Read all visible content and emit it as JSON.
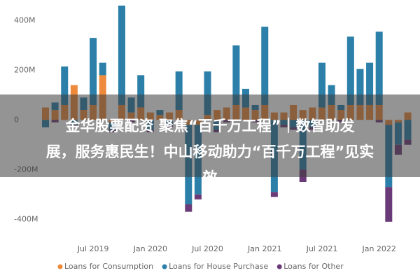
{
  "chart_data": {
    "type": "stacked_bar",
    "categories": [
      null,
      null,
      null,
      null,
      null,
      "Jul 2019",
      null,
      null,
      null,
      null,
      null,
      "Jan 2020",
      null,
      null,
      null,
      null,
      null,
      "Jul 2020",
      null,
      null,
      null,
      null,
      null,
      "Jan 2021",
      null,
      null,
      null,
      null,
      null,
      "Jul 2021",
      null,
      null,
      null,
      null,
      null,
      "Jan 2022",
      null,
      null,
      null
    ],
    "series": [
      {
        "name": "Loans for Consumption",
        "color": "#ee8a3c",
        "values": [
          50,
          40,
          60,
          140,
          40,
          60,
          180,
          -10,
          60,
          30,
          50,
          30,
          20,
          30,
          40,
          -20,
          -20,
          20,
          40,
          50,
          60,
          50,
          40,
          60,
          30,
          30,
          60,
          40,
          50,
          50,
          60,
          40,
          60,
          60,
          60,
          60,
          -20,
          -10,
          30
        ]
      },
      {
        "name": "Loans for House Purchase",
        "color": "#2b7fa8",
        "values": [
          -30,
          30,
          155,
          -20,
          50,
          270,
          50,
          -30,
          400,
          60,
          130,
          -40,
          20,
          -20,
          155,
          -320,
          -280,
          175,
          -40,
          0,
          240,
          75,
          20,
          315,
          -290,
          -20,
          -30,
          -200,
          -30,
          180,
          80,
          20,
          275,
          145,
          170,
          295,
          -250,
          -90,
          -80
        ]
      },
      {
        "name": "Loans for Other",
        "color": "#6a3b78",
        "values": [
          0,
          -10,
          0,
          -10,
          0,
          0,
          0,
          -10,
          0,
          -10,
          0,
          -10,
          0,
          -10,
          0,
          -30,
          -20,
          0,
          -10,
          -10,
          0,
          0,
          -10,
          0,
          -20,
          -10,
          -10,
          -50,
          -10,
          0,
          0,
          -10,
          0,
          0,
          0,
          -10,
          -140,
          -40,
          -20
        ]
      }
    ],
    "ylim": [
      -450,
      460
    ],
    "yticks": [
      {
        "value": 400,
        "label": "400M"
      },
      {
        "value": 200,
        "label": "200M"
      },
      0,
      {
        "value": -200,
        "label": "-200M"
      },
      {
        "value": -400,
        "label": "-400M"
      }
    ],
    "grid": false
  },
  "overlay": {
    "lines": [
      "金华股票配资 聚焦“百千万工程”｜数智助发",
      "展，服务惠民生！中山移动助力“百千万工程”见实",
      "效"
    ]
  }
}
